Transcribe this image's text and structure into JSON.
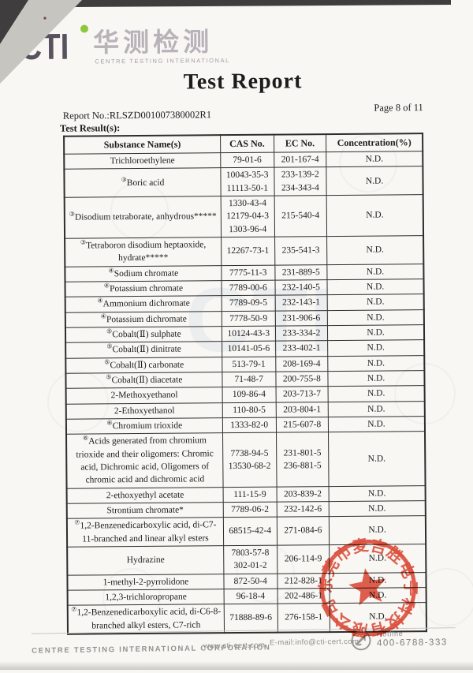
{
  "logo": {
    "abbr": "CTI",
    "chinese": "华测检测",
    "tagline": "CENTRE TESTING INTERNATIONAL",
    "accent_green": "#8dc63f",
    "text_gray": "#57525d"
  },
  "header": {
    "title": "Test Report",
    "report_no": "Report No.:RLSZD001007380002R1",
    "page_label": "Page 8 of 11",
    "section_label": "Test Result(s):"
  },
  "table": {
    "headers": [
      "Substance Name(s)",
      "CAS No.",
      "EC No.",
      "Concentration(%)"
    ],
    "rows": [
      {
        "marker": "",
        "name": "Trichloroethylene",
        "cas": [
          "79-01-6"
        ],
        "ec": [
          "201-167-4"
        ],
        "conc": "N.D."
      },
      {
        "marker": "③",
        "name": "Boric acid",
        "cas": [
          "10043-35-3",
          "11113-50-1"
        ],
        "ec": [
          "233-139-2",
          "234-343-4"
        ],
        "conc": "N.D."
      },
      {
        "marker": "③",
        "name": "Disodium tetraborate, anhydrous*****",
        "cas": [
          "1330-43-4",
          "12179-04-3",
          "1303-96-4"
        ],
        "ec": [
          "215-540-4"
        ],
        "conc": "N.D."
      },
      {
        "marker": "③",
        "name": "Tetraboron disodium heptaoxide, hydrate*****",
        "cas": [
          "12267-73-1"
        ],
        "ec": [
          "235-541-3"
        ],
        "conc": "N.D."
      },
      {
        "marker": "④",
        "name": "Sodium chromate",
        "cas": [
          "7775-11-3"
        ],
        "ec": [
          "231-889-5"
        ],
        "conc": "N.D."
      },
      {
        "marker": "④",
        "name": "Potassium chromate",
        "cas": [
          "7789-00-6"
        ],
        "ec": [
          "232-140-5"
        ],
        "conc": "N.D."
      },
      {
        "marker": "④",
        "name": "Ammonium dichromate",
        "cas": [
          "7789-09-5"
        ],
        "ec": [
          "232-143-1"
        ],
        "conc": "N.D."
      },
      {
        "marker": "④",
        "name": "Potassium dichromate",
        "cas": [
          "7778-50-9"
        ],
        "ec": [
          "231-906-6"
        ],
        "conc": "N.D."
      },
      {
        "marker": "⑤",
        "name": "Cobalt(Ⅱ) sulphate",
        "cas": [
          "10124-43-3"
        ],
        "ec": [
          "233-334-2"
        ],
        "conc": "N.D."
      },
      {
        "marker": "⑤",
        "name": "Cobalt(Ⅱ) dinitrate",
        "cas": [
          "10141-05-6"
        ],
        "ec": [
          "233-402-1"
        ],
        "conc": "N.D."
      },
      {
        "marker": "⑤",
        "name": "Cobalt(Ⅱ) carbonate",
        "cas": [
          "513-79-1"
        ],
        "ec": [
          "208-169-4"
        ],
        "conc": "N.D."
      },
      {
        "marker": "⑤",
        "name": "Cobalt(Ⅱ) diacetate",
        "cas": [
          "71-48-7"
        ],
        "ec": [
          "200-755-8"
        ],
        "conc": "N.D."
      },
      {
        "marker": "",
        "name": "2-Methoxyethanol",
        "cas": [
          "109-86-4"
        ],
        "ec": [
          "203-713-7"
        ],
        "conc": "N.D."
      },
      {
        "marker": "",
        "name": "2-Ethoxyethanol",
        "cas": [
          "110-80-5"
        ],
        "ec": [
          "203-804-1"
        ],
        "conc": "N.D."
      },
      {
        "marker": "⑥",
        "name": "Chromium trioxide",
        "cas": [
          "1333-82-0"
        ],
        "ec": [
          "215-607-8"
        ],
        "conc": "N.D."
      },
      {
        "marker": "⑥",
        "name": "Acids generated from chromium trioxide and their oligomers: Chromic acid, Dichromic acid, Oligomers of chromic acid and dichromic acid",
        "cas": [
          "7738-94-5",
          "13530-68-2"
        ],
        "ec": [
          "231-801-5",
          "236-881-5"
        ],
        "conc": "N.D."
      },
      {
        "marker": "",
        "name": "2-ethoxyethyl acetate",
        "cas": [
          "111-15-9"
        ],
        "ec": [
          "203-839-2"
        ],
        "conc": "N.D."
      },
      {
        "marker": "",
        "name": "Strontium chromate*",
        "cas": [
          "7789-06-2"
        ],
        "ec": [
          "232-142-6"
        ],
        "conc": "N.D."
      },
      {
        "marker": "⑦",
        "name": "1,2-Benzenedicarboxylic acid, di-C7-11-branched and linear alkyl esters",
        "cas": [
          "68515-42-4"
        ],
        "ec": [
          "271-084-6"
        ],
        "conc": "N.D."
      },
      {
        "marker": "",
        "name": "Hydrazine",
        "cas": [
          "7803-57-8",
          "302-01-2"
        ],
        "ec": [
          "206-114-9"
        ],
        "conc": "N.D."
      },
      {
        "marker": "",
        "name": "1-methyl-2-pyrrolidone",
        "cas": [
          "872-50-4"
        ],
        "ec": [
          "212-828-1"
        ],
        "conc": "N.D."
      },
      {
        "marker": "",
        "name": "1,2,3-trichloropropane",
        "cas": [
          "96-18-4"
        ],
        "ec": [
          "202-486-1"
        ],
        "conc": "N.D."
      },
      {
        "marker": "⑦",
        "name": "1,2-Benzenedicarboxylic acid, di-C6-8-branched alkyl esters, C7-rich",
        "cas": [
          "71888-89-6"
        ],
        "ec": [
          "276-158-1"
        ],
        "conc": "N.D."
      }
    ]
  },
  "stamp": {
    "company": "东莞市麦吉胜电子科技有限公司",
    "color": "#e0402c"
  },
  "footer": {
    "company": "CENTRE TESTING INTERNATIONAL CORPORATION",
    "website": "www.cti-cert.com",
    "email": "E-mail:info@cti-cert.com",
    "hotline_label": "Hotline",
    "hotline_number": "400-6788-333"
  },
  "watermark": {
    "text": "CTI"
  }
}
